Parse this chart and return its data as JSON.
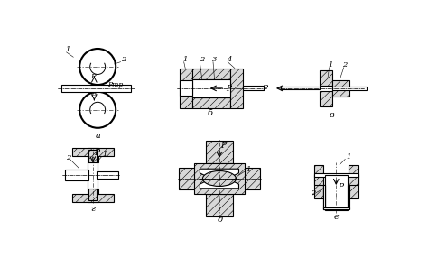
{
  "background_color": "#ffffff",
  "fig_width": 4.74,
  "fig_height": 2.96,
  "dpi": 100,
  "labels": {
    "a": "а",
    "b": "б",
    "v": "в",
    "g": "г",
    "d": "д",
    "e": "е"
  },
  "text_P": "P",
  "text_Ptr": "Pтр"
}
